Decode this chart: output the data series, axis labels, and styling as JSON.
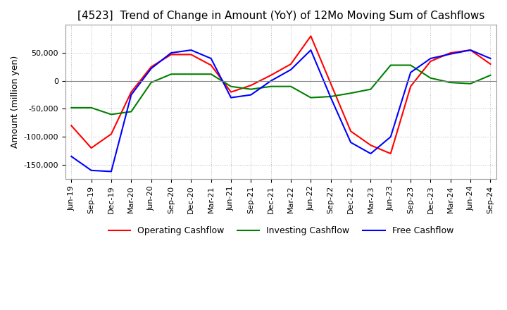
{
  "title": "[4523]  Trend of Change in Amount (YoY) of 12Mo Moving Sum of Cashflows",
  "ylabel": "Amount (million yen)",
  "title_fontsize": 11,
  "label_fontsize": 9,
  "tick_fontsize": 8,
  "background_color": "#ffffff",
  "plot_bg_color": "#ffffff",
  "grid_color": "#bbbbbb",
  "operating_color": "#ff0000",
  "investing_color": "#008000",
  "free_color": "#0000ff",
  "x_labels": [
    "Jun-19",
    "Sep-19",
    "Dec-19",
    "Mar-20",
    "Jun-20",
    "Sep-20",
    "Dec-20",
    "Mar-21",
    "Jun-21",
    "Sep-21",
    "Dec-21",
    "Mar-22",
    "Jun-22",
    "Sep-22",
    "Dec-22",
    "Mar-23",
    "Jun-23",
    "Sep-23",
    "Dec-23",
    "Mar-24",
    "Jun-24",
    "Sep-24"
  ],
  "operating": [
    -80000,
    -120000,
    -95000,
    -20000,
    25000,
    47000,
    47000,
    28000,
    -20000,
    -8000,
    10000,
    30000,
    80000,
    -5000,
    -90000,
    -115000,
    -130000,
    -10000,
    35000,
    50000,
    55000,
    30000
  ],
  "investing": [
    -48000,
    -48000,
    -60000,
    -55000,
    -3000,
    12000,
    12000,
    12000,
    -10000,
    -15000,
    -10000,
    -10000,
    -30000,
    -28000,
    -22000,
    -15000,
    28000,
    28000,
    5000,
    -3000,
    -5000,
    10000
  ],
  "free": [
    -135000,
    -160000,
    -162000,
    -25000,
    22000,
    50000,
    55000,
    40000,
    -30000,
    -25000,
    0,
    20000,
    55000,
    -30000,
    -110000,
    -130000,
    -100000,
    15000,
    40000,
    48000,
    55000,
    40000
  ],
  "ylim": [
    -175000,
    100000
  ],
  "yticks": [
    -150000,
    -100000,
    -50000,
    0,
    50000
  ]
}
